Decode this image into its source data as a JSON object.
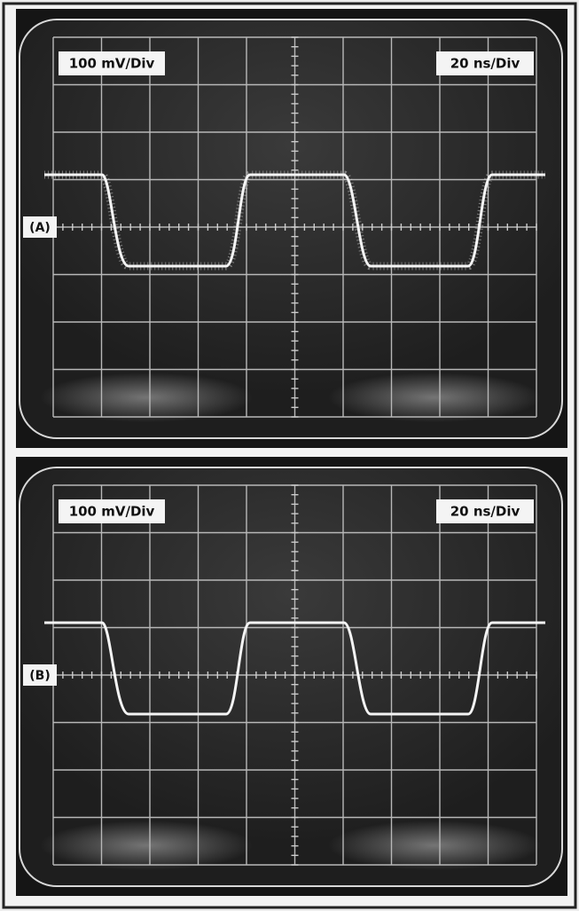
{
  "panels": [
    {
      "vertical_scale": "100 mV/Div",
      "horizontal_scale": "20 ns/Div",
      "label": "(A)"
    },
    {
      "vertical_scale": "100 mV/Div",
      "horizontal_scale": "20 ns/Div",
      "label": "(B)"
    }
  ]
}
